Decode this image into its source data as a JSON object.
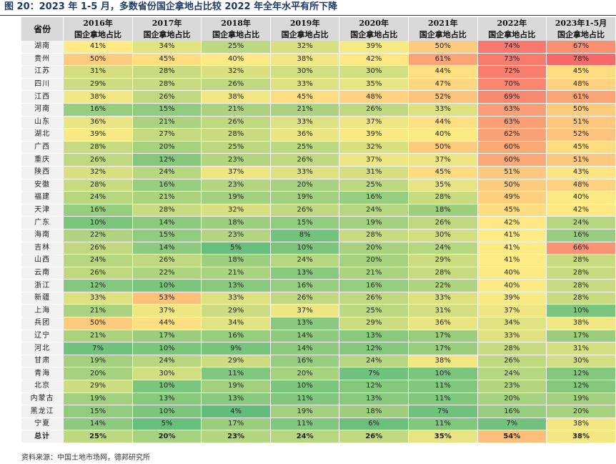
{
  "title": "图 20：2023 年 1-5 月，多数省份国企拿地占比较 2022 年全年水平有所下降",
  "header": {
    "province_label": "省份",
    "years": [
      "2016年",
      "2017年",
      "2018年",
      "2019年",
      "2020年",
      "2021年",
      "2022年",
      "2023年1-5月"
    ],
    "metric_label": "国企拿地占比"
  },
  "rows": [
    {
      "province": "湖南",
      "values": [
        "41%",
        "34%",
        "25%",
        "32%",
        "39%",
        "50%",
        "74%",
        "67%"
      ]
    },
    {
      "province": "贵州",
      "values": [
        "50%",
        "45%",
        "40%",
        "38%",
        "42%",
        "61%",
        "73%",
        "78%"
      ]
    },
    {
      "province": "江苏",
      "values": [
        "31%",
        "28%",
        "32%",
        "30%",
        "30%",
        "44%",
        "72%",
        "45%"
      ]
    },
    {
      "province": "四川",
      "values": [
        "29%",
        "28%",
        "26%",
        "33%",
        "35%",
        "47%",
        "70%",
        "48%"
      ]
    },
    {
      "province": "江西",
      "values": [
        "38%",
        "26%",
        "38%",
        "45%",
        "48%",
        "52%",
        "69%",
        "61%"
      ]
    },
    {
      "province": "河南",
      "values": [
        "16%",
        "15%",
        "21%",
        "21%",
        "26%",
        "33%",
        "63%",
        "50%"
      ]
    },
    {
      "province": "山东",
      "values": [
        "36%",
        "21%",
        "26%",
        "33%",
        "37%",
        "44%",
        "63%",
        "51%"
      ]
    },
    {
      "province": "湖北",
      "values": [
        "39%",
        "27%",
        "28%",
        "36%",
        "39%",
        "40%",
        "62%",
        "52%"
      ]
    },
    {
      "province": "广西",
      "values": [
        "28%",
        "20%",
        "25%",
        "25%",
        "32%",
        "50%",
        "60%",
        "45%"
      ]
    },
    {
      "province": "重庆",
      "values": [
        "26%",
        "12%",
        "23%",
        "26%",
        "37%",
        "37%",
        "60%",
        "51%"
      ]
    },
    {
      "province": "陕西",
      "values": [
        "32%",
        "24%",
        "37%",
        "33%",
        "31%",
        "45%",
        "51%",
        "43%"
      ]
    },
    {
      "province": "安徽",
      "values": [
        "28%",
        "16%",
        "23%",
        "20%",
        "25%",
        "35%",
        "50%",
        "48%"
      ]
    },
    {
      "province": "福建",
      "values": [
        "24%",
        "21%",
        "19%",
        "19%",
        "16%",
        "28%",
        "49%",
        "40%"
      ]
    },
    {
      "province": "天津",
      "values": [
        "16%",
        "28%",
        "32%",
        "26%",
        "24%",
        "18%",
        "45%",
        "42%"
      ]
    },
    {
      "province": "广东",
      "values": [
        "10%",
        "14%",
        "18%",
        "15%",
        "19%",
        "26%",
        "42%",
        "24%"
      ]
    },
    {
      "province": "海南",
      "values": [
        "22%",
        "15%",
        "23%",
        "8%",
        "28%",
        "30%",
        "41%",
        "16%"
      ]
    },
    {
      "province": "吉林",
      "values": [
        "26%",
        "14%",
        "5%",
        "10%",
        "20%",
        "24%",
        "41%",
        "66%"
      ]
    },
    {
      "province": "山西",
      "values": [
        "24%",
        "26%",
        "18%",
        "24%",
        "20%",
        "29%",
        "41%",
        "28%"
      ]
    },
    {
      "province": "云南",
      "values": [
        "26%",
        "22%",
        "21%",
        "13%",
        "21%",
        "28%",
        "40%",
        "28%"
      ]
    },
    {
      "province": "浙江",
      "values": [
        "12%",
        "10%",
        "13%",
        "16%",
        "16%",
        "22%",
        "40%",
        "28%"
      ]
    },
    {
      "province": "新疆",
      "values": [
        "33%",
        "53%",
        "33%",
        "26%",
        "26%",
        "33%",
        "39%",
        "28%"
      ]
    },
    {
      "province": "上海",
      "values": [
        "21%",
        "37%",
        "29%",
        "37%",
        "25%",
        "31%",
        "37%",
        "10%"
      ]
    },
    {
      "province": "兵团",
      "values": [
        "50%",
        "44%",
        "34%",
        "13%",
        "29%",
        "36%",
        "34%",
        "38%"
      ]
    },
    {
      "province": "辽宁",
      "values": [
        "21%",
        "17%",
        "16%",
        "14%",
        "13%",
        "17%",
        "33%",
        "17%"
      ]
    },
    {
      "province": "河北",
      "values": [
        "7%",
        "10%",
        "9%",
        "14%",
        "12%",
        "17%",
        "28%",
        "31%"
      ]
    },
    {
      "province": "甘肃",
      "values": [
        "19%",
        "24%",
        "29%",
        "16%",
        "24%",
        "38%",
        "26%",
        "30%"
      ]
    },
    {
      "province": "青海",
      "values": [
        "20%",
        "30%",
        "11%",
        "20%",
        "7%",
        "10%",
        "24%",
        "12%"
      ]
    },
    {
      "province": "北京",
      "values": [
        "29%",
        "10%",
        "19%",
        "10%",
        "12%",
        "11%",
        "23%",
        "12%"
      ]
    },
    {
      "province": "内蒙古",
      "values": [
        "19%",
        "13%",
        "13%",
        "11%",
        "13%",
        "11%",
        "20%",
        "19%"
      ]
    },
    {
      "province": "黑龙江",
      "values": [
        "15%",
        "10%",
        "4%",
        "19%",
        "18%",
        "7%",
        "16%",
        "20%"
      ]
    },
    {
      "province": "宁夏",
      "values": [
        "14%",
        "5%",
        "17%",
        "11%",
        "6%",
        "11%",
        "7%",
        "38%"
      ]
    }
  ],
  "total": {
    "label": "总计",
    "values": [
      "25%",
      "20%",
      "23%",
      "24%",
      "26%",
      "35%",
      "54%",
      "38%"
    ]
  },
  "source": "资料来源：中国土地市场网，德邦研究所",
  "colors": {
    "low": "#63be7b",
    "mid": "#ffeb84",
    "high": "#f8696b",
    "header_bg": "#d9d9d9",
    "title": "#1f3a66"
  }
}
